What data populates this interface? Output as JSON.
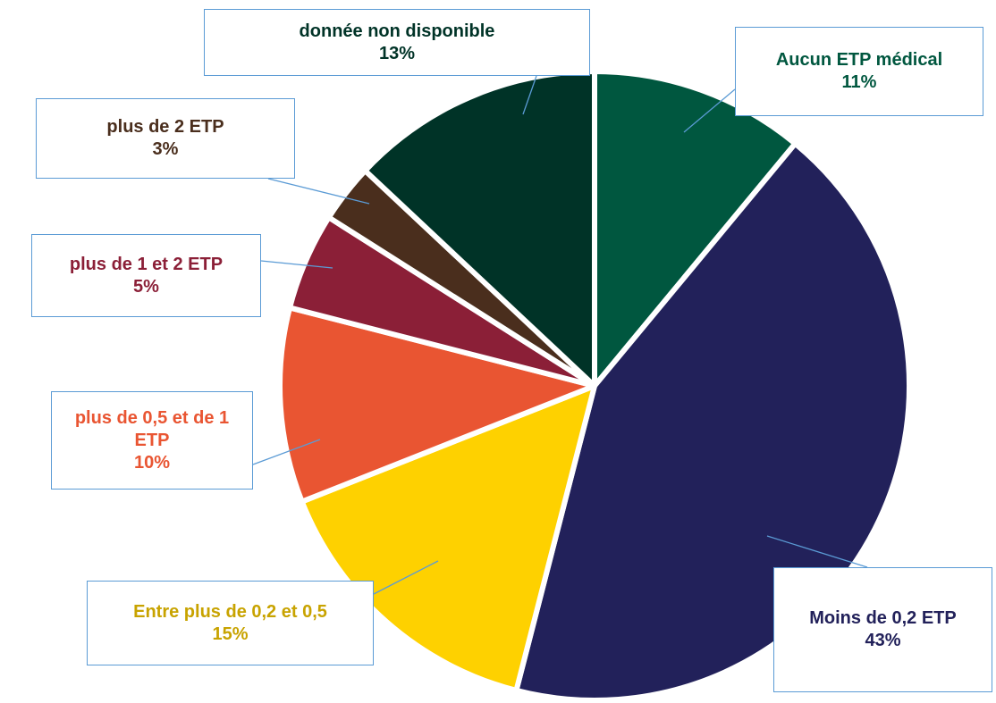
{
  "chart_data": {
    "type": "pie",
    "categories": [
      "Aucun ETP médical",
      "Moins de 0,2 ETP",
      "Entre plus de 0,2 et 0,5",
      "plus de 0,5 et de 1 ETP",
      "plus de 1 et 2 ETP",
      "plus de 2 ETP",
      "donnée non disponible"
    ],
    "values": [
      11,
      43,
      15,
      10,
      5,
      3,
      13
    ],
    "value_labels": [
      "11%",
      "43%",
      "15%",
      "10%",
      "5%",
      "3%",
      "13%"
    ],
    "colors": [
      "#00573f",
      "#22215a",
      "#fed100",
      "#e95532",
      "#8b1f37",
      "#4a2e1d",
      "#003327"
    ],
    "label_colors": [
      "#00573f",
      "#22215a",
      "#c8a300",
      "#e95532",
      "#8b1f37",
      "#4a2e1d",
      "#003327"
    ]
  }
}
